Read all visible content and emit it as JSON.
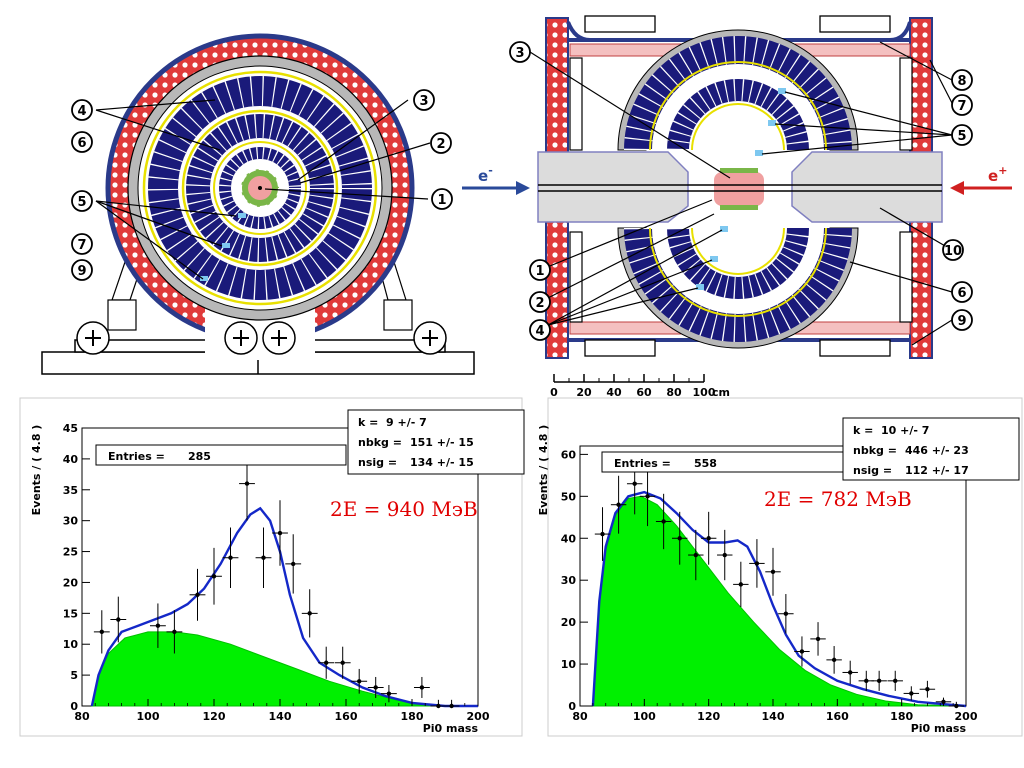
{
  "diagram_left": {
    "callouts": [
      "1",
      "2",
      "3",
      "4",
      "5",
      "6",
      "7",
      "9"
    ]
  },
  "diagram_right": {
    "callouts": [
      "1",
      "2",
      "3",
      "4",
      "5",
      "6",
      "7",
      "8",
      "9",
      "10"
    ],
    "beam_left": "e",
    "beam_left_sup": "-",
    "beam_right": "e",
    "beam_right_sup": "+",
    "scale": {
      "ticks": [
        "0",
        "20",
        "40",
        "60",
        "80",
        "100"
      ],
      "unit": "cm"
    }
  },
  "chart_data": [
    {
      "type": "scatter",
      "ylabel": "Events / ( 4.8 )",
      "xlabel": "Pi0 mass",
      "xlim": [
        80,
        200
      ],
      "ylim": [
        0,
        45
      ],
      "xticks": [
        "80",
        "100",
        "120",
        "140",
        "160",
        "180",
        "200"
      ],
      "yticks": [
        "0",
        "5",
        "10",
        "15",
        "20",
        "25",
        "30",
        "35",
        "40",
        "45"
      ],
      "entries_label": "Entries =",
      "entries_value": "285",
      "stats": [
        {
          "label": "k =",
          "value": "9 +/- 7"
        },
        {
          "label": "nbkg =",
          "value": "151 +/- 15"
        },
        {
          "label": "nsig =",
          "value": "134 +/- 15"
        }
      ],
      "annotation": "2E = 940 МэВ",
      "points": [
        {
          "x": 86,
          "y": 12,
          "e": 3.5
        },
        {
          "x": 91,
          "y": 14,
          "e": 3.7
        },
        {
          "x": 103,
          "y": 13,
          "e": 3.6
        },
        {
          "x": 108,
          "y": 12,
          "e": 3.5
        },
        {
          "x": 115,
          "y": 18,
          "e": 4.2
        },
        {
          "x": 120,
          "y": 21,
          "e": 4.6
        },
        {
          "x": 125,
          "y": 24,
          "e": 4.9
        },
        {
          "x": 130,
          "y": 36,
          "e": 6
        },
        {
          "x": 135,
          "y": 24,
          "e": 4.9
        },
        {
          "x": 140,
          "y": 28,
          "e": 5.3
        },
        {
          "x": 144,
          "y": 23,
          "e": 4.8
        },
        {
          "x": 149,
          "y": 15,
          "e": 3.9
        },
        {
          "x": 154,
          "y": 7,
          "e": 2.6
        },
        {
          "x": 159,
          "y": 7,
          "e": 2.6
        },
        {
          "x": 164,
          "y": 4,
          "e": 2
        },
        {
          "x": 169,
          "y": 3,
          "e": 1.7
        },
        {
          "x": 173,
          "y": 2,
          "e": 1.4
        },
        {
          "x": 183,
          "y": 3,
          "e": 1.7
        },
        {
          "x": 188,
          "y": 0,
          "e": 1
        },
        {
          "x": 192,
          "y": 0,
          "e": 1
        }
      ],
      "fit": [
        [
          83,
          0
        ],
        [
          85,
          5
        ],
        [
          88,
          9
        ],
        [
          92,
          12
        ],
        [
          97,
          13
        ],
        [
          102,
          14
        ],
        [
          107,
          15
        ],
        [
          112,
          16.5
        ],
        [
          117,
          19
        ],
        [
          122,
          23
        ],
        [
          127,
          28
        ],
        [
          131,
          31
        ],
        [
          134,
          32
        ],
        [
          137,
          30
        ],
        [
          140,
          25
        ],
        [
          143,
          18
        ],
        [
          147,
          11
        ],
        [
          152,
          7
        ],
        [
          158,
          5
        ],
        [
          165,
          3
        ],
        [
          172,
          1.6
        ],
        [
          180,
          0.5
        ],
        [
          190,
          0
        ],
        [
          200,
          0
        ]
      ],
      "background": [
        [
          83,
          0
        ],
        [
          85,
          5
        ],
        [
          88,
          8.5
        ],
        [
          93,
          11
        ],
        [
          100,
          12
        ],
        [
          108,
          12
        ],
        [
          115,
          11.5
        ],
        [
          125,
          10
        ],
        [
          135,
          8
        ],
        [
          145,
          6
        ],
        [
          155,
          4
        ],
        [
          165,
          2.4
        ],
        [
          175,
          1
        ],
        [
          185,
          0.1
        ],
        [
          200,
          0
        ]
      ]
    },
    {
      "type": "scatter",
      "ylabel": "Events / ( 4.8 )",
      "xlabel": "Pi0 mass",
      "xlim": [
        80,
        200
      ],
      "ylim": [
        0,
        62
      ],
      "xticks": [
        "80",
        "100",
        "120",
        "140",
        "160",
        "180",
        "200"
      ],
      "yticks": [
        "0",
        "10",
        "20",
        "30",
        "40",
        "50",
        "60"
      ],
      "entries_label": "Entries =",
      "entries_value": "558",
      "stats": [
        {
          "label": "k =",
          "value": "10 +/- 7"
        },
        {
          "label": "nbkg =",
          "value": "446 +/- 23"
        },
        {
          "label": "nsig =",
          "value": "112 +/- 17"
        }
      ],
      "annotation": "2E = 782 МэВ",
      "points": [
        {
          "x": 87,
          "y": 41,
          "e": 6.4
        },
        {
          "x": 92,
          "y": 48,
          "e": 6.9
        },
        {
          "x": 97,
          "y": 53,
          "e": 7.3
        },
        {
          "x": 101,
          "y": 50,
          "e": 7.1
        },
        {
          "x": 106,
          "y": 44,
          "e": 6.6
        },
        {
          "x": 111,
          "y": 40,
          "e": 6.3
        },
        {
          "x": 116,
          "y": 36,
          "e": 6
        },
        {
          "x": 120,
          "y": 40,
          "e": 6.3
        },
        {
          "x": 125,
          "y": 36,
          "e": 6
        },
        {
          "x": 130,
          "y": 29,
          "e": 5.4
        },
        {
          "x": 135,
          "y": 34,
          "e": 5.8
        },
        {
          "x": 140,
          "y": 32,
          "e": 5.7
        },
        {
          "x": 144,
          "y": 22,
          "e": 4.7
        },
        {
          "x": 149,
          "y": 13,
          "e": 3.6
        },
        {
          "x": 154,
          "y": 16,
          "e": 4
        },
        {
          "x": 159,
          "y": 11,
          "e": 3.3
        },
        {
          "x": 164,
          "y": 8,
          "e": 2.8
        },
        {
          "x": 169,
          "y": 6,
          "e": 2.4
        },
        {
          "x": 173,
          "y": 6,
          "e": 2.4
        },
        {
          "x": 178,
          "y": 6,
          "e": 2.4
        },
        {
          "x": 183,
          "y": 3,
          "e": 1.7
        },
        {
          "x": 188,
          "y": 4,
          "e": 2
        },
        {
          "x": 193,
          "y": 1,
          "e": 1
        },
        {
          "x": 197,
          "y": 0,
          "e": 1
        }
      ],
      "fit": [
        [
          84,
          0
        ],
        [
          86,
          25
        ],
        [
          88,
          38
        ],
        [
          91,
          46
        ],
        [
          95,
          50
        ],
        [
          100,
          51
        ],
        [
          105,
          49.5
        ],
        [
          110,
          46
        ],
        [
          115,
          42
        ],
        [
          120,
          39
        ],
        [
          125,
          39
        ],
        [
          129,
          39.5
        ],
        [
          132,
          38
        ],
        [
          136,
          32
        ],
        [
          140,
          24
        ],
        [
          144,
          17
        ],
        [
          148,
          12
        ],
        [
          153,
          9
        ],
        [
          160,
          6
        ],
        [
          168,
          4
        ],
        [
          176,
          2.4
        ],
        [
          185,
          1
        ],
        [
          195,
          0.3
        ],
        [
          200,
          0
        ]
      ],
      "background": [
        [
          84,
          0
        ],
        [
          86,
          24
        ],
        [
          88,
          37
        ],
        [
          91,
          45.5
        ],
        [
          95,
          49.5
        ],
        [
          99,
          50
        ],
        [
          104,
          48
        ],
        [
          110,
          43
        ],
        [
          118,
          35
        ],
        [
          126,
          27
        ],
        [
          134,
          20
        ],
        [
          142,
          13.5
        ],
        [
          150,
          8.5
        ],
        [
          158,
          5
        ],
        [
          166,
          2.8
        ],
        [
          175,
          1.2
        ],
        [
          185,
          0.3
        ],
        [
          200,
          0
        ]
      ]
    }
  ]
}
